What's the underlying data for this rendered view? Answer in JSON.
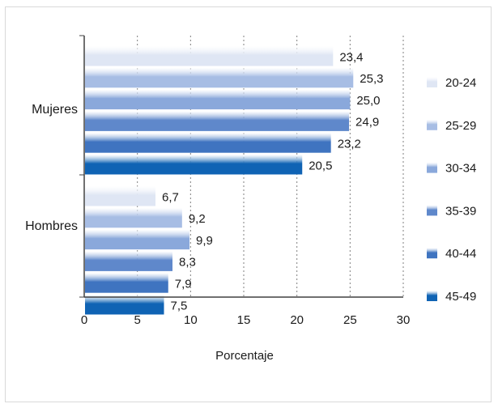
{
  "chart_data": {
    "type": "bar",
    "orientation": "horizontal",
    "categories": [
      "Mujeres",
      "Hombres"
    ],
    "series": [
      {
        "name": "20-24",
        "values": [
          23.4,
          6.7
        ],
        "labels": [
          "23,4",
          "6,7"
        ],
        "color": "#dfe6f4"
      },
      {
        "name": "25-29",
        "values": [
          25.3,
          9.2
        ],
        "labels": [
          "25,3",
          "9,2"
        ],
        "color": "#a7bde4"
      },
      {
        "name": "30-34",
        "values": [
          25.0,
          9.9
        ],
        "labels": [
          "25,0",
          "9,9"
        ],
        "color": "#8aa8db"
      },
      {
        "name": "35-39",
        "values": [
          24.9,
          8.3
        ],
        "labels": [
          "24,9",
          "8,3"
        ],
        "color": "#5f88cb"
      },
      {
        "name": "40-44",
        "values": [
          23.2,
          7.9
        ],
        "labels": [
          "23,2",
          "7,9"
        ],
        "color": "#3f74c0"
      },
      {
        "name": "45-49",
        "values": [
          20.5,
          7.5
        ],
        "labels": [
          "20,5",
          "7,5"
        ],
        "color": "#0f63b4"
      }
    ],
    "xlabel": "Porcentaje",
    "ylabel": "",
    "xlim": [
      0,
      30
    ],
    "xticks": [
      0,
      5,
      10,
      15,
      20,
      25,
      30
    ],
    "xtick_labels": [
      "0",
      "5",
      "10",
      "15",
      "20",
      "25",
      "30"
    ],
    "grid": "vertical-dashed",
    "legend_position": "right"
  }
}
